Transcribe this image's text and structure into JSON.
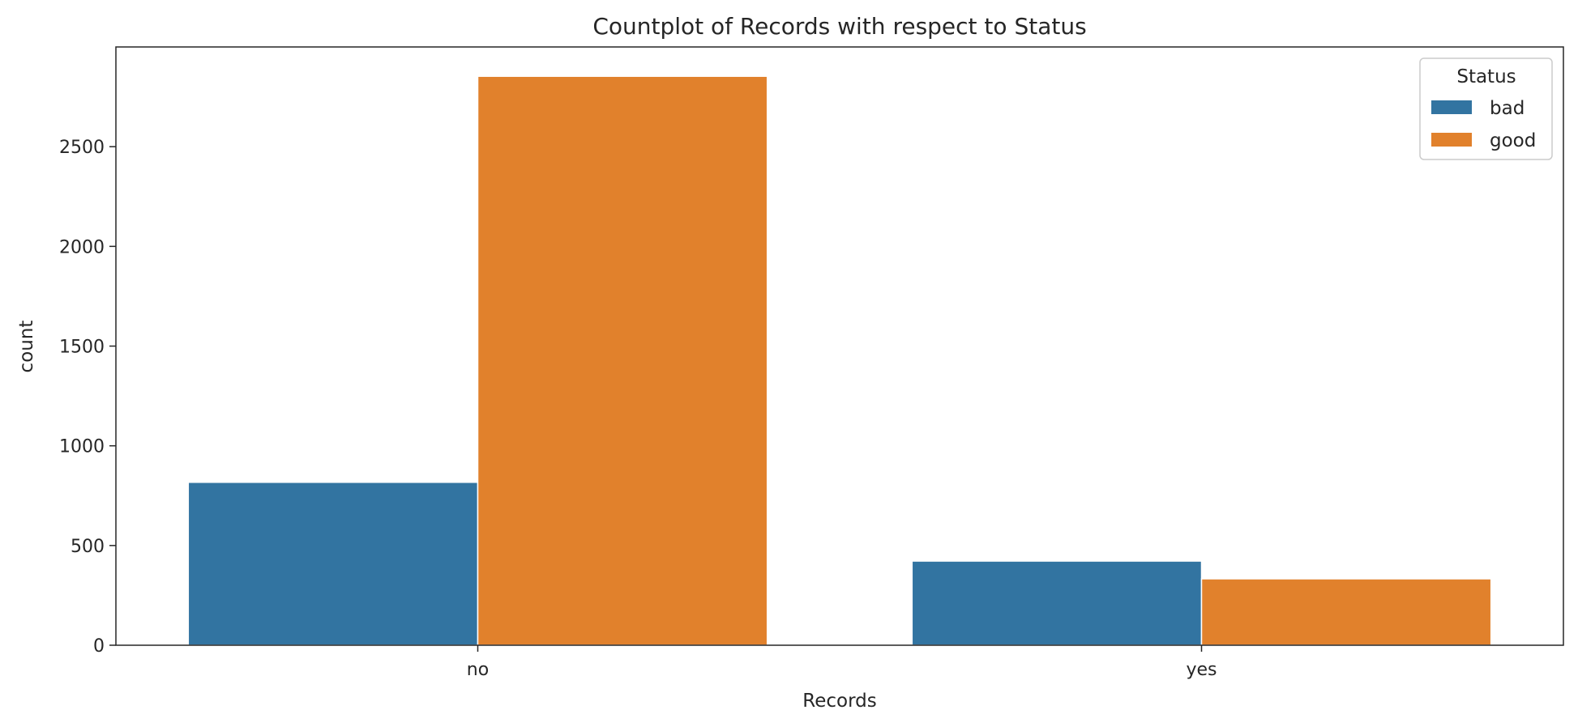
{
  "chart_data": {
    "type": "bar",
    "title": "Countplot of Records with respect to Status",
    "xlabel": "Records",
    "ylabel": "count",
    "categories": [
      "no",
      "yes"
    ],
    "series": [
      {
        "name": "bad",
        "values": [
          817,
          422
        ],
        "color": "#3274a1"
      },
      {
        "name": "good",
        "values": [
          2853,
          333
        ],
        "color": "#e1812c"
      }
    ],
    "ylim": [
      0,
      3000
    ],
    "yticks": [
      0,
      500,
      1000,
      1500,
      2000,
      2500
    ],
    "legend": {
      "title": "Status",
      "placement": "top-right"
    },
    "grid": false
  }
}
